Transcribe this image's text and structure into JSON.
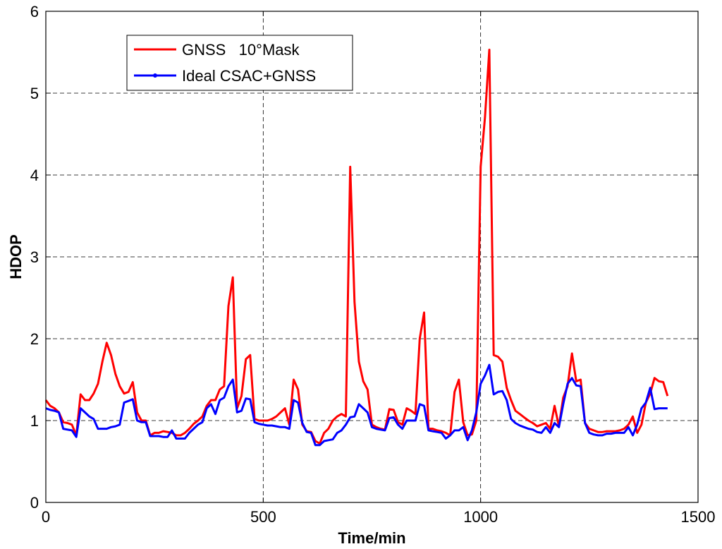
{
  "chart_data": {
    "type": "line",
    "title": "",
    "xlabel": "Time/min",
    "ylabel": "HDOP",
    "xlim": [
      0,
      1500
    ],
    "ylim": [
      0,
      6
    ],
    "xticks": [
      0,
      500,
      1000,
      1500
    ],
    "yticks": [
      0,
      1,
      2,
      3,
      4,
      5,
      6
    ],
    "grid": "dashed, major ticks",
    "legend_position": "top-left",
    "series": [
      {
        "name": "GNSS   10°Mask",
        "color": "#ff0000",
        "x": [
          0,
          10,
          20,
          30,
          40,
          50,
          60,
          70,
          80,
          90,
          100,
          110,
          120,
          130,
          140,
          150,
          160,
          170,
          180,
          190,
          200,
          210,
          220,
          230,
          240,
          250,
          260,
          270,
          280,
          290,
          300,
          310,
          320,
          330,
          340,
          350,
          360,
          370,
          380,
          390,
          400,
          410,
          420,
          430,
          440,
          450,
          460,
          470,
          480,
          490,
          500,
          510,
          520,
          530,
          540,
          550,
          560,
          570,
          580,
          590,
          600,
          610,
          620,
          630,
          640,
          650,
          660,
          670,
          680,
          690,
          700,
          710,
          720,
          730,
          740,
          750,
          760,
          770,
          780,
          790,
          800,
          810,
          820,
          830,
          840,
          850,
          860,
          870,
          880,
          890,
          900,
          910,
          920,
          930,
          940,
          950,
          960,
          970,
          980,
          990,
          1000,
          1010,
          1020,
          1030,
          1040,
          1050,
          1060,
          1070,
          1080,
          1090,
          1100,
          1110,
          1120,
          1130,
          1140,
          1150,
          1160,
          1170,
          1180,
          1190,
          1200,
          1210,
          1220,
          1230,
          1240,
          1250,
          1260,
          1270,
          1280,
          1290,
          1300,
          1310,
          1320,
          1330,
          1340,
          1350,
          1360,
          1370,
          1380,
          1390,
          1400,
          1410,
          1420,
          1430
        ],
        "y": [
          1.25,
          1.18,
          1.15,
          1.1,
          0.98,
          0.97,
          0.95,
          0.82,
          1.32,
          1.25,
          1.25,
          1.33,
          1.45,
          1.72,
          1.95,
          1.8,
          1.57,
          1.42,
          1.33,
          1.35,
          1.47,
          1.1,
          1.0,
          1.0,
          0.82,
          0.85,
          0.85,
          0.87,
          0.86,
          0.85,
          0.82,
          0.82,
          0.85,
          0.9,
          0.96,
          1.0,
          1.05,
          1.18,
          1.25,
          1.25,
          1.38,
          1.42,
          2.4,
          2.75,
          1.15,
          1.3,
          1.75,
          1.8,
          1.02,
          1.0,
          1.0,
          1.0,
          1.02,
          1.05,
          1.1,
          1.15,
          0.95,
          1.5,
          1.38,
          0.95,
          0.87,
          0.86,
          0.75,
          0.72,
          0.85,
          0.9,
          1.0,
          1.05,
          1.08,
          1.05,
          4.1,
          2.45,
          1.72,
          1.48,
          1.38,
          0.95,
          0.92,
          0.9,
          0.89,
          1.14,
          1.13,
          0.98,
          0.95,
          1.15,
          1.12,
          1.08,
          2.0,
          2.32,
          0.9,
          0.9,
          0.88,
          0.87,
          0.85,
          0.82,
          1.35,
          1.5,
          0.98,
          0.82,
          0.83,
          1.0,
          4.1,
          4.7,
          5.53,
          1.8,
          1.78,
          1.72,
          1.4,
          1.25,
          1.12,
          1.08,
          1.04,
          1.0,
          0.97,
          0.93,
          0.95,
          0.97,
          0.9,
          1.18,
          0.93,
          1.28,
          1.42,
          1.82,
          1.48,
          1.5,
          0.97,
          0.9,
          0.88,
          0.86,
          0.86,
          0.87,
          0.87,
          0.87,
          0.88,
          0.9,
          0.95,
          1.05,
          0.85,
          0.95,
          1.22,
          1.33,
          1.52,
          1.48,
          1.47,
          1.3
        ]
      },
      {
        "name": "Ideal CSAC+GNSS",
        "color": "#0000ff",
        "x": [
          0,
          10,
          20,
          30,
          40,
          50,
          60,
          70,
          80,
          90,
          100,
          110,
          120,
          130,
          140,
          150,
          160,
          170,
          180,
          190,
          200,
          210,
          220,
          230,
          240,
          250,
          260,
          270,
          280,
          290,
          300,
          310,
          320,
          330,
          340,
          350,
          360,
          370,
          380,
          390,
          400,
          410,
          420,
          430,
          440,
          450,
          460,
          470,
          480,
          490,
          500,
          510,
          520,
          530,
          540,
          550,
          560,
          570,
          580,
          590,
          600,
          610,
          620,
          630,
          640,
          650,
          660,
          670,
          680,
          690,
          700,
          710,
          720,
          730,
          740,
          750,
          760,
          770,
          780,
          790,
          800,
          810,
          820,
          830,
          840,
          850,
          860,
          870,
          880,
          890,
          900,
          910,
          920,
          930,
          940,
          950,
          960,
          970,
          980,
          990,
          1000,
          1010,
          1020,
          1030,
          1040,
          1050,
          1060,
          1070,
          1080,
          1090,
          1100,
          1110,
          1120,
          1130,
          1140,
          1150,
          1160,
          1170,
          1180,
          1190,
          1200,
          1210,
          1220,
          1230,
          1240,
          1250,
          1260,
          1270,
          1280,
          1290,
          1300,
          1310,
          1320,
          1330,
          1340,
          1350,
          1360,
          1370,
          1380,
          1390,
          1400,
          1410,
          1420,
          1430
        ],
        "y": [
          1.15,
          1.13,
          1.12,
          1.1,
          0.9,
          0.89,
          0.88,
          0.8,
          1.15,
          1.1,
          1.05,
          1.02,
          0.9,
          0.9,
          0.9,
          0.92,
          0.93,
          0.95,
          1.22,
          1.24,
          1.26,
          1.0,
          0.98,
          0.98,
          0.81,
          0.81,
          0.81,
          0.8,
          0.8,
          0.88,
          0.78,
          0.78,
          0.78,
          0.85,
          0.9,
          0.95,
          0.98,
          1.15,
          1.2,
          1.08,
          1.25,
          1.28,
          1.42,
          1.5,
          1.1,
          1.12,
          1.27,
          1.26,
          0.98,
          0.96,
          0.95,
          0.94,
          0.94,
          0.93,
          0.92,
          0.92,
          0.9,
          1.25,
          1.22,
          0.97,
          0.86,
          0.85,
          0.7,
          0.7,
          0.75,
          0.76,
          0.77,
          0.85,
          0.88,
          0.95,
          1.04,
          1.05,
          1.2,
          1.15,
          1.1,
          0.92,
          0.9,
          0.89,
          0.88,
          1.03,
          1.04,
          0.95,
          0.9,
          1.0,
          1.0,
          1.0,
          1.2,
          1.18,
          0.88,
          0.87,
          0.86,
          0.85,
          0.78,
          0.82,
          0.88,
          0.88,
          0.92,
          0.76,
          0.88,
          1.1,
          1.45,
          1.55,
          1.68,
          1.32,
          1.35,
          1.36,
          1.25,
          1.02,
          0.97,
          0.94,
          0.92,
          0.9,
          0.89,
          0.86,
          0.85,
          0.92,
          0.85,
          0.97,
          0.92,
          1.2,
          1.45,
          1.52,
          1.43,
          1.42,
          0.97,
          0.85,
          0.83,
          0.82,
          0.82,
          0.84,
          0.84,
          0.85,
          0.85,
          0.85,
          0.92,
          0.82,
          0.95,
          1.15,
          1.22,
          1.4,
          1.14,
          1.15,
          1.15,
          1.15
        ]
      }
    ]
  }
}
